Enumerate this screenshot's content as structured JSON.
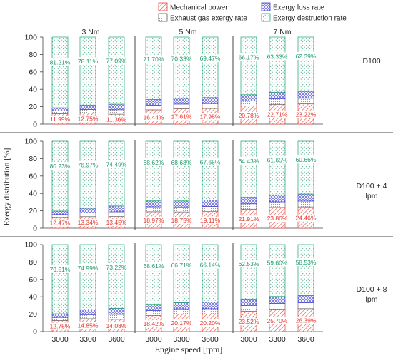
{
  "chart_data": {
    "type": "bar",
    "stacked": true,
    "xlabel": "Engine speed [rpm]",
    "ylabel": "Exergy distribution  [%]",
    "ylim": [
      0,
      100
    ],
    "yticks": [
      "0",
      "20",
      "40",
      "60",
      "80",
      "100"
    ],
    "legend": {
      "placement": "top",
      "items": [
        {
          "name": "Mechanical power",
          "color": "#e8453c",
          "pattern": "diagonal-hatch"
        },
        {
          "name": "Exergy loss rate",
          "color": "#3b3bd6",
          "pattern": "crosshatch"
        },
        {
          "name": "Exhaust gas exergy rate",
          "color": "#7a7a7a",
          "pattern": "fine-dots"
        },
        {
          "name": "Exergy destruction rate",
          "color": "#20a070",
          "pattern": "dots"
        }
      ]
    },
    "torque_groups": [
      "3 Nm",
      "5 Nm",
      "7 Nm"
    ],
    "speeds": [
      "3000",
      "3300",
      "3600"
    ],
    "panels": [
      {
        "label": "D100",
        "mechanical": [
          11.99,
          12.75,
          11.36,
          16.44,
          17.61,
          17.98,
          20.78,
          22.71,
          23.22
        ],
        "destruction": [
          81.21,
          78.11,
          77.09,
          71.7,
          70.33,
          69.47,
          66.17,
          63.33,
          62.39
        ],
        "mechanical_labels": [
          "11.99%",
          "12.75%",
          "11.36%",
          "16.44%",
          "17.61%",
          "17.98%",
          "20.78%",
          "22.71%",
          "23.22%"
        ],
        "destruction_labels": [
          "81.21%",
          "78.11%",
          "77.09%",
          "71.70%",
          "70.33%",
          "69.47%",
          "66.17%",
          "63.33%",
          "62.39%"
        ]
      },
      {
        "label": "D100 + 4 lpm",
        "mechanical": [
          12.47,
          13.34,
          13.45,
          18.97,
          18.75,
          19.11,
          21.91,
          23.86,
          24.46
        ],
        "destruction": [
          80.23,
          76.97,
          74.49,
          68.62,
          68.68,
          67.65,
          64.43,
          61.65,
          60.66
        ],
        "mechanical_labels": [
          "12.47%",
          "13.34%",
          "13.45%",
          "18.97%",
          "18.75%",
          "19.11%",
          "21.91%",
          "23.86%",
          "24.46%"
        ],
        "destruction_labels": [
          "80.23%",
          "76.97%",
          "74.49%",
          "68.62%",
          "68.68%",
          "67.65%",
          "64.43%",
          "61.65%",
          "60.66%"
        ]
      },
      {
        "label": "D100 + 8 lpm",
        "mechanical": [
          12.75,
          14.85,
          14.08,
          18.42,
          20.17,
          20.2,
          23.52,
          25.7,
          26.39
        ],
        "destruction": [
          79.51,
          74.99,
          73.22,
          68.61,
          66.71,
          66.14,
          62.53,
          59.6,
          58.53
        ],
        "mechanical_labels": [
          "12.75%",
          "14.85%",
          "14.08%",
          "18.42%",
          "20.17%",
          "20.20%",
          "23.52%",
          "25.70%",
          "26.39%"
        ],
        "destruction_labels": [
          "79.51%",
          "74.99%",
          "73.22%",
          "68.61%",
          "66.71%",
          "66.14%",
          "62.53%",
          "59.60%",
          "58.53%"
        ]
      }
    ]
  }
}
